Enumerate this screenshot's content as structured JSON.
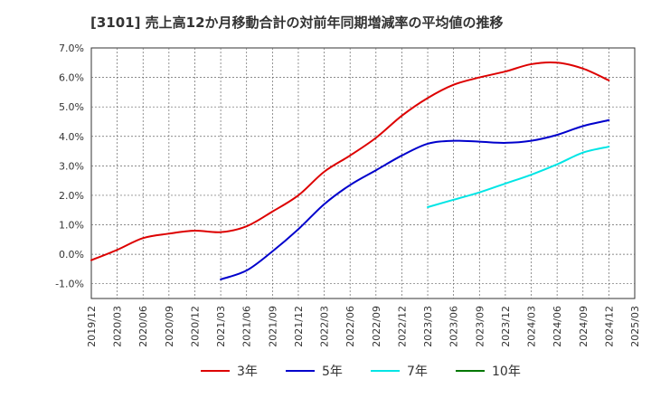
{
  "chart_data": {
    "type": "line",
    "title": "[3101]  売上高12か月移動合計の対前年同期増減率の平均値の推移",
    "xlabel": "",
    "ylabel": "",
    "ylim": [
      -1.5,
      7.0
    ],
    "y_ticks": [
      -1.0,
      0.0,
      1.0,
      2.0,
      3.0,
      4.0,
      5.0,
      6.0,
      7.0
    ],
    "y_tick_labels": [
      "-1.0%",
      "0.0%",
      "1.0%",
      "2.0%",
      "3.0%",
      "4.0%",
      "5.0%",
      "6.0%",
      "7.0%"
    ],
    "x_tick_labels": [
      "2019/12",
      "2020/03",
      "2020/06",
      "2020/09",
      "2020/12",
      "2021/03",
      "2021/06",
      "2021/09",
      "2021/12",
      "2022/03",
      "2022/06",
      "2022/09",
      "2022/12",
      "2023/03",
      "2023/06",
      "2023/09",
      "2023/12",
      "2024/03",
      "2024/06",
      "2024/09",
      "2024/12",
      "2025/03"
    ],
    "grid": true,
    "legend_position": "bottom",
    "series": [
      {
        "name": "3年",
        "color": "#dd0000",
        "x": [
          "2019/12",
          "2020/03",
          "2020/06",
          "2020/09",
          "2020/12",
          "2021/03",
          "2021/06",
          "2021/09",
          "2021/12",
          "2022/03",
          "2022/06",
          "2022/09",
          "2022/12",
          "2023/03",
          "2023/06",
          "2023/09",
          "2023/12",
          "2024/03",
          "2024/06",
          "2024/09",
          "2024/12"
        ],
        "values": [
          -0.2,
          0.15,
          0.55,
          0.7,
          0.8,
          0.75,
          0.95,
          1.45,
          2.0,
          2.8,
          3.35,
          3.95,
          4.7,
          5.3,
          5.75,
          6.0,
          6.2,
          6.45,
          6.5,
          6.3,
          5.9
        ]
      },
      {
        "name": "5年",
        "color": "#0000cc",
        "x": [
          "2021/03",
          "2021/06",
          "2021/09",
          "2021/12",
          "2022/03",
          "2022/06",
          "2022/09",
          "2022/12",
          "2023/03",
          "2023/06",
          "2023/09",
          "2023/12",
          "2024/03",
          "2024/06",
          "2024/09",
          "2024/12"
        ],
        "values": [
          -0.85,
          -0.55,
          0.1,
          0.85,
          1.7,
          2.35,
          2.85,
          3.35,
          3.75,
          3.85,
          3.82,
          3.78,
          3.85,
          4.05,
          4.35,
          4.55
        ]
      },
      {
        "name": "7年",
        "color": "#00e5e5",
        "x": [
          "2023/03",
          "2023/06",
          "2023/09",
          "2023/12",
          "2024/03",
          "2024/06",
          "2024/09",
          "2024/12"
        ],
        "values": [
          1.6,
          1.85,
          2.1,
          2.4,
          2.7,
          3.05,
          3.45,
          3.65
        ]
      },
      {
        "name": "10年",
        "color": "#007700",
        "x": [],
        "values": []
      }
    ]
  }
}
